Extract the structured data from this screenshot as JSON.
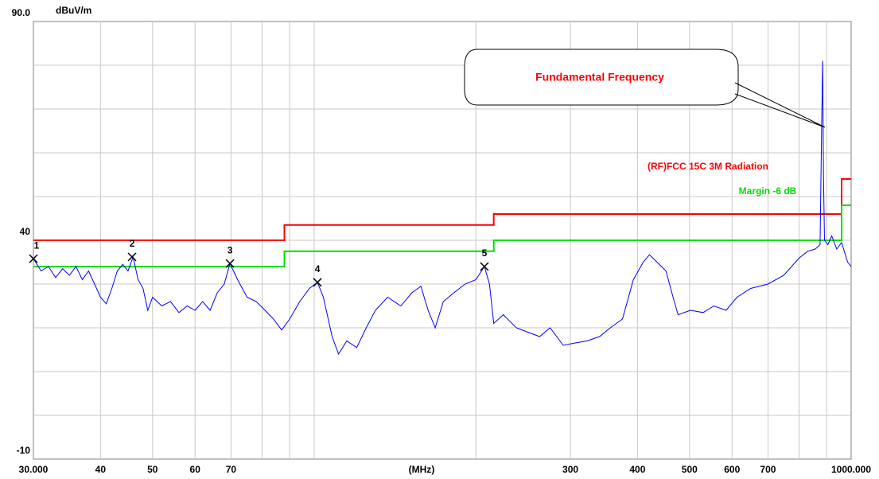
{
  "chart_data": {
    "type": "line",
    "y_unit": "dBuV/m",
    "xlabel": "(MHz)",
    "xscale": "log",
    "xlim": [
      30,
      1000
    ],
    "ylim": [
      -10,
      90
    ],
    "yticks": [
      {
        "value": 90,
        "label": "90.0"
      },
      40,
      -10
    ],
    "ygrid": [
      0,
      10,
      20,
      30,
      40,
      50,
      60,
      70,
      80
    ],
    "xticks": [
      {
        "value": 30,
        "label": "30.000"
      },
      40,
      50,
      60,
      70,
      300,
      400,
      500,
      600,
      700,
      {
        "value": 1000,
        "label": "1000.000"
      }
    ],
    "xgrid": [
      40,
      50,
      60,
      70,
      80,
      90,
      100,
      200,
      300,
      400,
      500,
      600,
      700,
      800,
      900
    ],
    "series": [
      {
        "name": "(RF)FCC 15C 3M Radiation",
        "color": "#ff0000",
        "x": [
          30,
          88,
          88,
          216,
          216,
          960,
          960,
          1000
        ],
        "values": [
          40,
          40,
          43.5,
          43.5,
          46,
          46,
          54,
          54
        ]
      },
      {
        "name": "Margin -6 dB",
        "color": "#00e000",
        "x": [
          30,
          88,
          88,
          216,
          216,
          960,
          960,
          1000
        ],
        "values": [
          34,
          34,
          37.5,
          37.5,
          40,
          40,
          48,
          48
        ]
      },
      {
        "color": "#0000ff",
        "x": [
          30,
          31,
          32,
          33,
          34,
          35,
          36,
          37,
          38,
          39,
          40,
          41,
          42,
          43,
          44,
          45,
          46,
          47,
          48,
          49,
          50,
          52,
          54,
          56,
          58,
          60,
          62,
          64,
          66,
          68,
          69.7,
          72,
          75,
          78,
          81,
          84,
          87,
          90,
          94,
          98,
          101.4,
          104,
          108,
          111,
          115,
          120,
          125,
          130,
          137,
          145,
          152,
          158,
          163,
          168,
          174,
          182,
          191,
          200,
          207.5,
          212,
          216,
          225,
          238,
          250,
          263,
          275,
          291,
          305,
          322,
          340,
          356,
          375,
          393,
          410,
          421,
          435,
          452,
          466,
          476,
          502,
          530,
          555,
          585,
          613,
          650,
          700,
          749,
          801,
          830,
          857,
          875,
          882,
          885,
          888,
          892,
          905,
          920,
          940,
          960,
          985,
          1000
        ],
        "values": [
          35.8,
          33,
          34,
          31.5,
          33.5,
          32,
          34,
          31,
          33,
          30,
          27,
          25.5,
          29,
          33,
          34.5,
          33,
          36.2,
          31,
          29,
          24,
          27,
          25,
          26,
          23.5,
          25,
          24,
          26,
          24,
          28,
          30,
          34.7,
          31,
          27,
          26,
          24,
          22,
          19.5,
          22,
          26,
          29,
          30.4,
          27,
          18,
          14,
          17,
          15.5,
          20,
          24,
          27,
          25,
          28,
          29.5,
          24,
          20,
          26,
          28,
          30,
          31,
          34,
          30,
          21,
          23,
          20,
          19,
          18,
          20,
          16,
          16.5,
          17,
          18,
          20,
          22,
          31,
          35,
          36.7,
          35,
          33,
          27,
          23,
          24,
          23.5,
          25,
          24,
          27,
          29,
          30,
          32,
          36,
          37.5,
          38,
          39,
          70,
          81,
          55,
          40,
          39,
          41,
          38,
          39.5,
          35,
          34
        ]
      }
    ],
    "markers": {
      "labels": [
        "1",
        "2",
        "3",
        "4",
        "5"
      ],
      "x": [
        30,
        45.8,
        69.7,
        101.4,
        207.5
      ],
      "values": [
        35.8,
        36.2,
        34.7,
        30.4,
        34
      ]
    },
    "annotation": "Fundamental Frequency"
  }
}
